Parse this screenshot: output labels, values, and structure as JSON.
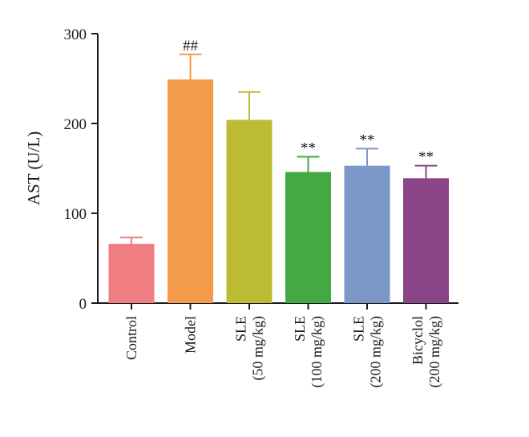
{
  "chart_data": {
    "type": "bar",
    "ylabel": "AST (U/L)",
    "xlabel": "",
    "ylim": [
      0,
      300
    ],
    "yticks": [
      0,
      100,
      200,
      300
    ],
    "grid": false,
    "categories": [
      {
        "lines": [
          "Control"
        ]
      },
      {
        "lines": [
          "Model"
        ]
      },
      {
        "lines": [
          "SLE",
          "(50 mg/kg)"
        ]
      },
      {
        "lines": [
          "SLE",
          "(100 mg/kg)"
        ]
      },
      {
        "lines": [
          "SLE",
          "(200 mg/kg)"
        ]
      },
      {
        "lines": [
          "Bicyclol",
          "(200 mg/kg)"
        ]
      }
    ],
    "values": [
      66,
      249,
      204,
      146,
      153,
      139
    ],
    "errors": [
      7,
      28,
      31,
      17,
      19,
      14
    ],
    "colors": [
      "#f07e80",
      "#f39a4b",
      "#bcbb34",
      "#43a943",
      "#7b98c8",
      "#8a4589"
    ],
    "significance": [
      "",
      "##",
      "",
      "**",
      "**",
      "**"
    ]
  }
}
